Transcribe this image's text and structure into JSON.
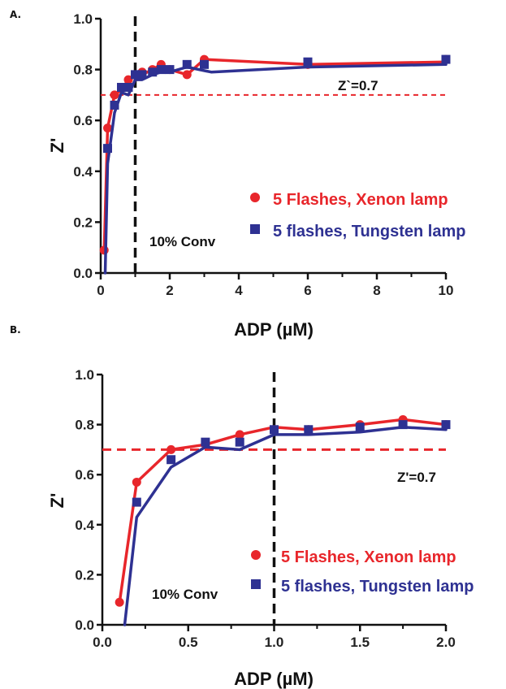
{
  "chart_data": [
    {
      "panel_label": "A.",
      "type": "scatter",
      "xlabel": "ADP (µM)",
      "ylabel": "Z'",
      "xlim": [
        0,
        10
      ],
      "ylim": [
        0,
        1.0
      ],
      "xticks": [
        0,
        2,
        4,
        6,
        8,
        10
      ],
      "xtick_labels": [
        "0",
        "2",
        "4",
        "6",
        "8",
        "10"
      ],
      "yticks": [
        0,
        0.2,
        0.4,
        0.6,
        0.8,
        1.0
      ],
      "ytick_labels": [
        "0.0",
        "0.2",
        "0.4",
        "0.6",
        "0.8",
        "1.0"
      ],
      "minor_xticks": [
        1,
        3,
        5,
        7,
        9
      ],
      "legend_position": "lower-right",
      "threshold": {
        "y": 0.7,
        "label": "Z`=0.7",
        "color": "#e8262b"
      },
      "vline": {
        "x": 1.0,
        "label": "10% Conv",
        "color": "#111111"
      },
      "series": [
        {
          "name": "5 Flashes, Xenon lamp",
          "marker": "circle",
          "color": "#e8262b",
          "x": [
            0.1,
            0.2,
            0.4,
            0.6,
            0.8,
            1.0,
            1.2,
            1.5,
            1.75,
            2.0,
            2.5,
            3.0,
            6.0,
            10.0
          ],
          "y": [
            0.09,
            0.57,
            0.7,
            0.73,
            0.76,
            0.78,
            0.79,
            0.8,
            0.82,
            0.8,
            0.78,
            0.84,
            0.82,
            0.84
          ],
          "line_x": [
            0.1,
            0.2,
            0.4,
            0.6,
            0.8,
            1.0,
            1.2,
            1.5,
            1.75,
            2.0,
            2.5,
            3.0,
            6.0,
            10.0
          ],
          "line_y": [
            0.09,
            0.57,
            0.7,
            0.72,
            0.76,
            0.78,
            0.78,
            0.8,
            0.82,
            0.8,
            0.78,
            0.84,
            0.82,
            0.83
          ]
        },
        {
          "name": "5 flashes, Tungsten lamp",
          "marker": "square",
          "color": "#2e3192",
          "x": [
            0.2,
            0.4,
            0.6,
            0.8,
            1.0,
            1.2,
            1.5,
            1.75,
            2.0,
            2.5,
            3.0,
            6.0,
            10.0
          ],
          "y": [
            0.49,
            0.66,
            0.73,
            0.73,
            0.78,
            0.78,
            0.79,
            0.8,
            0.8,
            0.82,
            0.82,
            0.83,
            0.84
          ],
          "line_x": [
            0.13,
            0.2,
            0.4,
            0.6,
            0.8,
            1.0,
            1.2,
            1.5,
            1.75,
            2.0,
            2.5,
            3.2,
            6.0,
            10.0
          ],
          "line_y": [
            0.0,
            0.43,
            0.63,
            0.71,
            0.7,
            0.76,
            0.76,
            0.78,
            0.79,
            0.79,
            0.81,
            0.79,
            0.81,
            0.82
          ]
        }
      ]
    },
    {
      "panel_label": "B.",
      "type": "scatter",
      "xlabel": "ADP (µM)",
      "ylabel": "Z'",
      "xlim": [
        0,
        2.0
      ],
      "ylim": [
        0,
        1.0
      ],
      "xticks": [
        0,
        0.5,
        1.0,
        1.5,
        2.0
      ],
      "xtick_labels": [
        "0.0",
        "0.5",
        "1.0",
        "1.5",
        "2.0"
      ],
      "yticks": [
        0,
        0.2,
        0.4,
        0.6,
        0.8,
        1.0
      ],
      "ytick_labels": [
        "0.0",
        "0.2",
        "0.4",
        "0.6",
        "0.8",
        "1.0"
      ],
      "minor_xticks": [
        0.25,
        0.75,
        1.25,
        1.75
      ],
      "legend_position": "lower-right",
      "threshold": {
        "y": 0.7,
        "label": "Z'=0.7",
        "color": "#e8262b"
      },
      "vline": {
        "x": 1.0,
        "label": "10% Conv",
        "color": "#111111"
      },
      "series": [
        {
          "name": "5 Flashes, Xenon lamp",
          "marker": "circle",
          "color": "#e8262b",
          "x": [
            0.1,
            0.2,
            0.4,
            0.6,
            0.8,
            1.0,
            1.2,
            1.5,
            1.75,
            2.0
          ],
          "y": [
            0.09,
            0.57,
            0.7,
            0.72,
            0.76,
            0.78,
            0.78,
            0.8,
            0.82,
            0.8
          ],
          "line_x": [
            0.1,
            0.2,
            0.4,
            0.6,
            0.8,
            1.0,
            1.2,
            1.5,
            1.75,
            2.0
          ],
          "line_y": [
            0.09,
            0.57,
            0.7,
            0.72,
            0.76,
            0.79,
            0.78,
            0.8,
            0.82,
            0.8
          ]
        },
        {
          "name": "5 flashes, Tungsten lamp",
          "marker": "square",
          "color": "#2e3192",
          "x": [
            0.2,
            0.4,
            0.6,
            0.8,
            1.0,
            1.2,
            1.5,
            1.75,
            2.0
          ],
          "y": [
            0.49,
            0.66,
            0.73,
            0.73,
            0.78,
            0.78,
            0.79,
            0.8,
            0.8
          ],
          "line_x": [
            0.13,
            0.2,
            0.4,
            0.6,
            0.8,
            1.0,
            1.2,
            1.5,
            1.75,
            2.0
          ],
          "line_y": [
            0.0,
            0.43,
            0.63,
            0.71,
            0.7,
            0.76,
            0.76,
            0.77,
            0.79,
            0.78
          ]
        }
      ]
    }
  ]
}
